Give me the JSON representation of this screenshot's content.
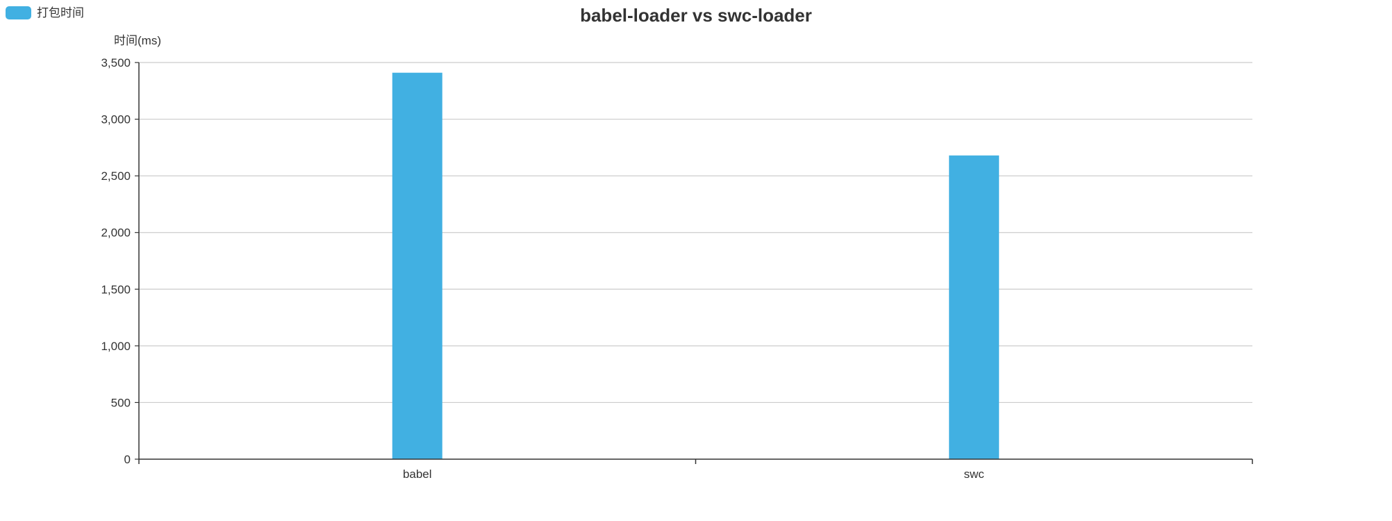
{
  "chart_data": {
    "type": "bar",
    "title": "babel-loader vs swc-loader",
    "xlabel": "",
    "ylabel": "时间(ms)",
    "categories": [
      "babel",
      "swc"
    ],
    "series": [
      {
        "name": "打包时间",
        "values": [
          3410,
          2680
        ]
      }
    ],
    "ylim": [
      0,
      3500
    ],
    "yticks": [
      0,
      500,
      1000,
      1500,
      2000,
      2500,
      3000,
      3500
    ],
    "ytick_labels": [
      "0",
      "500",
      "1,000",
      "1,500",
      "2,000",
      "2,500",
      "3,000",
      "3,500"
    ],
    "grid": true,
    "legend_position": "top-left",
    "colors": {
      "bar": "#41b0e2",
      "grid": "#cccccc",
      "axis": "#333333",
      "text": "#333333"
    }
  }
}
